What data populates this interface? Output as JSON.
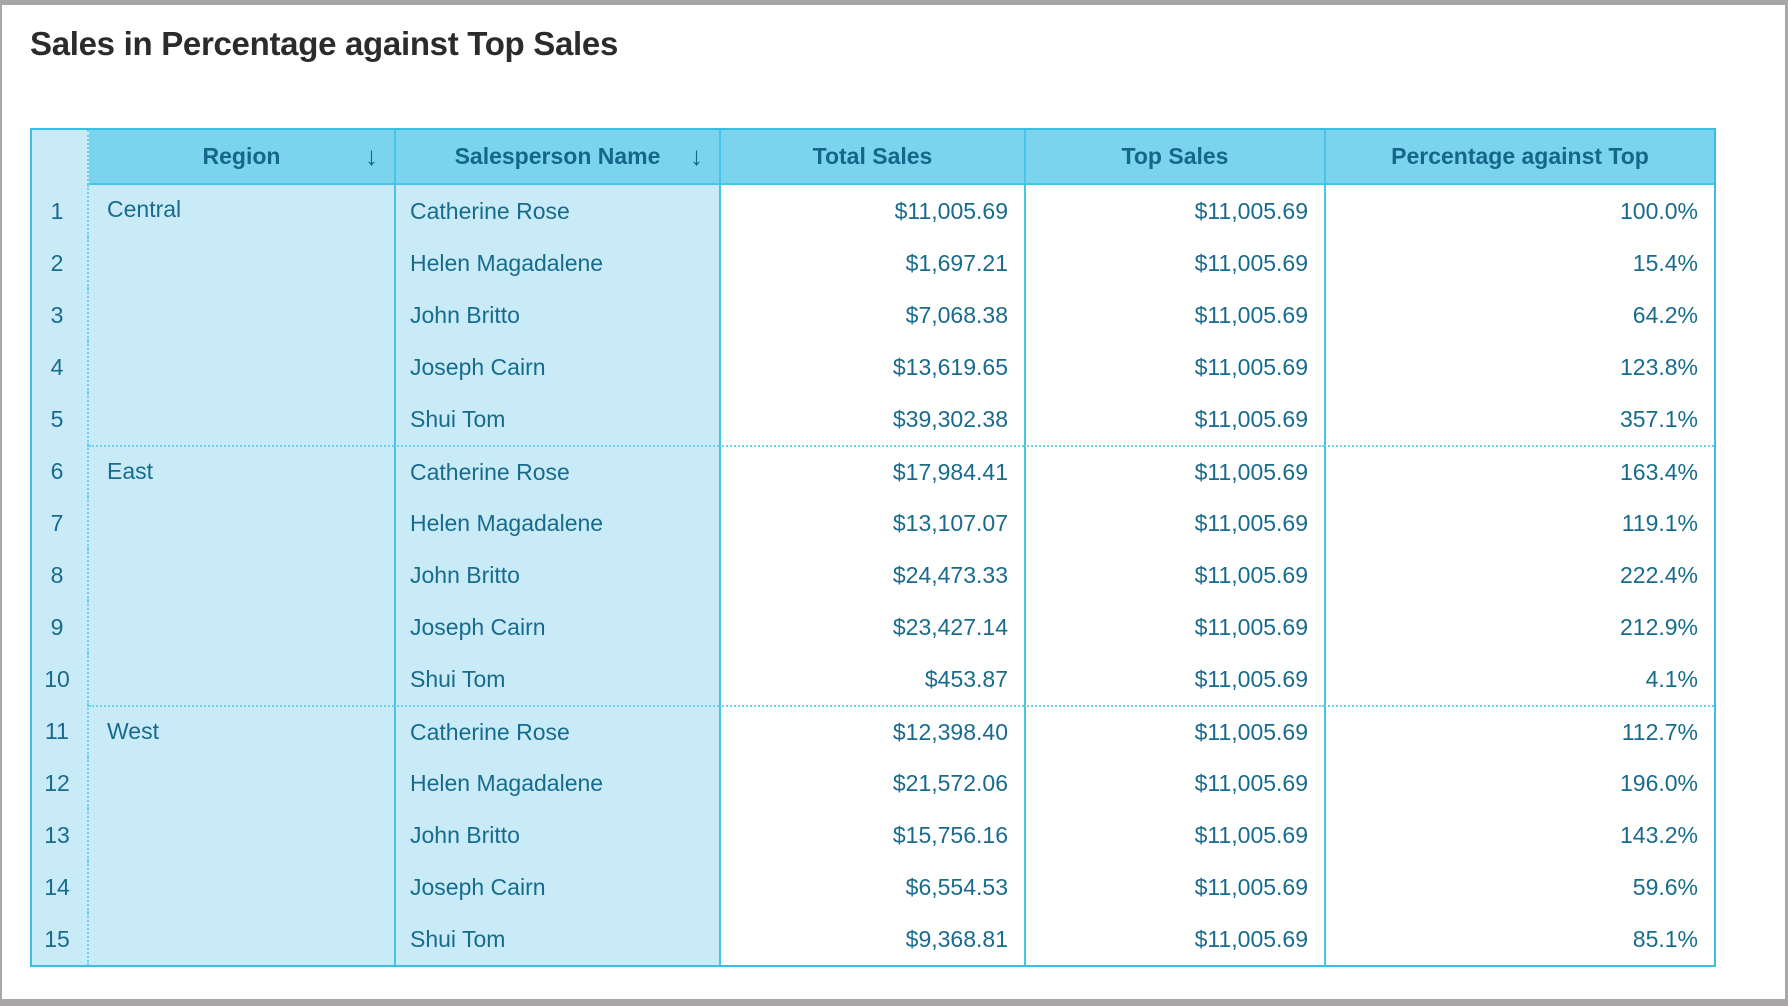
{
  "page": {
    "title": "Sales in Percentage against Top Sales"
  },
  "icons": {
    "sort_descending": "↓"
  },
  "colors": {
    "header_bg": "#7ad4ee",
    "cell_bg_light": "#c8ebf7",
    "text_teal": "#186b8d",
    "header_text": "#15678a",
    "border_solid": "#49c3e8",
    "border_outer": "#3cbde3",
    "border_dotted": "#6ad0ee",
    "title_text": "#2b2b2b",
    "frame_gray": "#a9a6a8"
  },
  "table": {
    "columns": [
      {
        "key": "num",
        "label": ""
      },
      {
        "key": "region",
        "label": "Region",
        "sorted": "descending"
      },
      {
        "key": "salesperson",
        "label": "Salesperson Name",
        "sorted": "descending"
      },
      {
        "key": "total_sales",
        "label": "Total Sales"
      },
      {
        "key": "top_sales",
        "label": "Top Sales"
      },
      {
        "key": "pct",
        "label": "Percentage against Top"
      }
    ],
    "rows": [
      {
        "num": "1",
        "region": "Central",
        "salesperson": "Catherine Rose",
        "total_sales": "$11,005.69",
        "top_sales": "$11,005.69",
        "pct": "100.0%"
      },
      {
        "num": "2",
        "region": "",
        "salesperson": "Helen Magadalene",
        "total_sales": "$1,697.21",
        "top_sales": "$11,005.69",
        "pct": "15.4%"
      },
      {
        "num": "3",
        "region": "",
        "salesperson": "John Britto",
        "total_sales": "$7,068.38",
        "top_sales": "$11,005.69",
        "pct": "64.2%"
      },
      {
        "num": "4",
        "region": "",
        "salesperson": "Joseph Cairn",
        "total_sales": "$13,619.65",
        "top_sales": "$11,005.69",
        "pct": "123.8%"
      },
      {
        "num": "5",
        "region": "",
        "salesperson": "Shui Tom",
        "total_sales": "$39,302.38",
        "top_sales": "$11,005.69",
        "pct": "357.1%"
      },
      {
        "num": "6",
        "region": "East",
        "salesperson": "Catherine Rose",
        "total_sales": "$17,984.41",
        "top_sales": "$11,005.69",
        "pct": "163.4%"
      },
      {
        "num": "7",
        "region": "",
        "salesperson": "Helen Magadalene",
        "total_sales": "$13,107.07",
        "top_sales": "$11,005.69",
        "pct": "119.1%"
      },
      {
        "num": "8",
        "region": "",
        "salesperson": "John Britto",
        "total_sales": "$24,473.33",
        "top_sales": "$11,005.69",
        "pct": "222.4%"
      },
      {
        "num": "9",
        "region": "",
        "salesperson": "Joseph Cairn",
        "total_sales": "$23,427.14",
        "top_sales": "$11,005.69",
        "pct": "212.9%"
      },
      {
        "num": "10",
        "region": "",
        "salesperson": "Shui Tom",
        "total_sales": "$453.87",
        "top_sales": "$11,005.69",
        "pct": "4.1%"
      },
      {
        "num": "11",
        "region": "West",
        "salesperson": "Catherine Rose",
        "total_sales": "$12,398.40",
        "top_sales": "$11,005.69",
        "pct": "112.7%"
      },
      {
        "num": "12",
        "region": "",
        "salesperson": "Helen Magadalene",
        "total_sales": "$21,572.06",
        "top_sales": "$11,005.69",
        "pct": "196.0%"
      },
      {
        "num": "13",
        "region": "",
        "salesperson": "John Britto",
        "total_sales": "$15,756.16",
        "top_sales": "$11,005.69",
        "pct": "143.2%"
      },
      {
        "num": "14",
        "region": "",
        "salesperson": "Joseph Cairn",
        "total_sales": "$6,554.53",
        "top_sales": "$11,005.69",
        "pct": "59.6%"
      },
      {
        "num": "15",
        "region": "",
        "salesperson": "Shui Tom",
        "total_sales": "$9,368.81",
        "top_sales": "$11,005.69",
        "pct": "85.1%"
      }
    ]
  }
}
